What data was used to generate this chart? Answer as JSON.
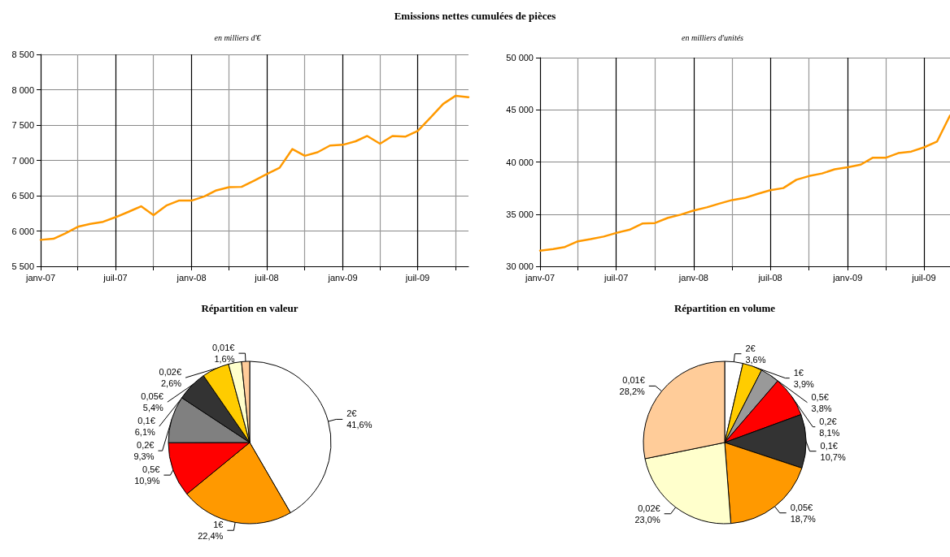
{
  "chart_data": [
    {
      "type": "line",
      "title": "Emissions nettes cumulées de pièces",
      "subtitle": "en milliers d'€",
      "x": [
        "2007-01",
        "2007-02",
        "2007-03",
        "2007-04",
        "2007-05",
        "2007-06",
        "2007-07",
        "2007-08",
        "2007-09",
        "2007-10",
        "2007-11",
        "2007-12",
        "2008-01",
        "2008-02",
        "2008-03",
        "2008-04",
        "2008-05",
        "2008-06",
        "2008-07",
        "2008-08",
        "2008-09",
        "2008-10",
        "2008-11",
        "2008-12",
        "2009-01",
        "2009-02",
        "2009-03",
        "2009-04",
        "2009-05",
        "2009-06",
        "2009-07",
        "2009-08",
        "2009-09",
        "2009-10",
        "2009-11"
      ],
      "series": [
        {
          "color": "#ff9900",
          "values": [
            5875,
            5890,
            5965,
            6060,
            6100,
            6130,
            6195,
            6270,
            6350,
            6225,
            6360,
            6430,
            6430,
            6490,
            6575,
            6620,
            6625,
            6715,
            6805,
            6895,
            7160,
            7065,
            7115,
            7210,
            7220,
            7270,
            7345,
            7235,
            7345,
            7335,
            7415,
            7605,
            7800,
            7915,
            7895
          ]
        }
      ],
      "xlim": [
        "2007-01",
        "2009-11"
      ],
      "xticks": [
        {
          "value": "2007-01",
          "label": "janv-07"
        },
        {
          "value": "2007-04",
          "label": null
        },
        {
          "value": "2007-07",
          "label": "juil-07"
        },
        {
          "value": "2007-10",
          "label": null
        },
        {
          "value": "2008-01",
          "label": "janv-08"
        },
        {
          "value": "2008-04",
          "label": null
        },
        {
          "value": "2008-07",
          "label": "juil-08"
        },
        {
          "value": "2008-10",
          "label": null
        },
        {
          "value": "2009-01",
          "label": "janv-09"
        },
        {
          "value": "2009-04",
          "label": null
        },
        {
          "value": "2009-07",
          "label": "juil-09"
        },
        {
          "value": "2009-10",
          "label": null
        }
      ],
      "ylim": [
        5500,
        8500
      ],
      "yticks": [
        {
          "value": 5500,
          "label": "5 500"
        },
        {
          "value": 6000,
          "label": "6 000"
        },
        {
          "value": 6500,
          "label": "6 500"
        },
        {
          "value": 7000,
          "label": "7 000"
        },
        {
          "value": 7500,
          "label": "7 500"
        },
        {
          "value": 8000,
          "label": "8 000"
        },
        {
          "value": 8500,
          "label": "8 500"
        }
      ],
      "grid": true,
      "legend": false,
      "marker": "none",
      "line_style": "solid"
    },
    {
      "type": "line",
      "subtitle": "en milliers d'unités",
      "x": [
        "2007-01",
        "2007-02",
        "2007-03",
        "2007-04",
        "2007-05",
        "2007-06",
        "2007-07",
        "2007-08",
        "2007-09",
        "2007-10",
        "2007-11",
        "2007-12",
        "2008-01",
        "2008-02",
        "2008-03",
        "2008-04",
        "2008-05",
        "2008-06",
        "2008-07",
        "2008-08",
        "2008-09",
        "2008-10",
        "2008-11",
        "2008-12",
        "2009-01",
        "2009-02",
        "2009-03",
        "2009-04",
        "2009-05",
        "2009-06",
        "2009-07",
        "2009-08",
        "2009-09"
      ],
      "series": [
        {
          "color": "#ff9900",
          "values": [
            31500,
            31650,
            31850,
            32400,
            32600,
            32850,
            33200,
            33500,
            34100,
            34150,
            34650,
            34950,
            35350,
            35650,
            36000,
            36350,
            36550,
            36950,
            37300,
            37500,
            38300,
            38650,
            38900,
            39300,
            39500,
            39750,
            40400,
            40400,
            40850,
            41000,
            41400,
            41950,
            44450
          ]
        }
      ],
      "xlim": [
        "2007-01",
        "2009-09"
      ],
      "xticks": [
        {
          "value": "2007-01",
          "label": "janv-07"
        },
        {
          "value": "2007-04",
          "label": null
        },
        {
          "value": "2007-07",
          "label": "juil-07"
        },
        {
          "value": "2007-10",
          "label": null
        },
        {
          "value": "2008-01",
          "label": "janv-08"
        },
        {
          "value": "2008-04",
          "label": null
        },
        {
          "value": "2008-07",
          "label": "juil-08"
        },
        {
          "value": "2008-10",
          "label": null
        },
        {
          "value": "2009-01",
          "label": "janv-09"
        },
        {
          "value": "2009-04",
          "label": null
        },
        {
          "value": "2009-07",
          "label": "juil-09"
        }
      ],
      "ylim": [
        30000,
        50000
      ],
      "yticks": [
        {
          "value": 30000,
          "label": "30 000"
        },
        {
          "value": 35000,
          "label": "35 000"
        },
        {
          "value": 40000,
          "label": "40 000"
        },
        {
          "value": 45000,
          "label": "45 000"
        },
        {
          "value": 50000,
          "label": "50 000"
        }
      ],
      "grid": true,
      "legend": false,
      "marker": "none",
      "line_style": "solid"
    },
    {
      "type": "pie",
      "title": "Répartition en valeur",
      "categories": [
        "2€",
        "1€",
        "0,5€",
        "0,2€",
        "0,1€",
        "0,05€",
        "0,02€",
        "0,01€"
      ],
      "values": [
        41.6,
        22.4,
        10.9,
        9.3,
        6.1,
        5.4,
        2.6,
        1.6
      ],
      "value_labels": [
        "41,6%",
        "22,4%",
        "10,9%",
        "9,3%",
        "6,1%",
        "5,4%",
        "2,6%",
        "1,6%"
      ],
      "colors": [
        "#ffffff",
        "#ff9900",
        "#ff0000",
        "#808080",
        "#333333",
        "#ffcc00",
        "#ffffcc",
        "#ffcc99"
      ],
      "legend": false
    },
    {
      "type": "pie",
      "title": "Répartition en volume",
      "categories": [
        "2€",
        "1€",
        "0,5€",
        "0,2€",
        "0,1€",
        "0,05€",
        "0,02€",
        "0,01€"
      ],
      "values": [
        3.6,
        3.9,
        3.8,
        8.1,
        10.7,
        18.7,
        23.0,
        28.2
      ],
      "value_labels": [
        "3,6%",
        "3,9%",
        "3,8%",
        "8,1%",
        "10,7%",
        "18,7%",
        "23,0%",
        "28,2%"
      ],
      "colors": [
        "#ffffff",
        "#ffcc00",
        "#999999",
        "#ff0000",
        "#333333",
        "#ff9900",
        "#ffffcc",
        "#ffcc99"
      ],
      "legend": false
    }
  ]
}
